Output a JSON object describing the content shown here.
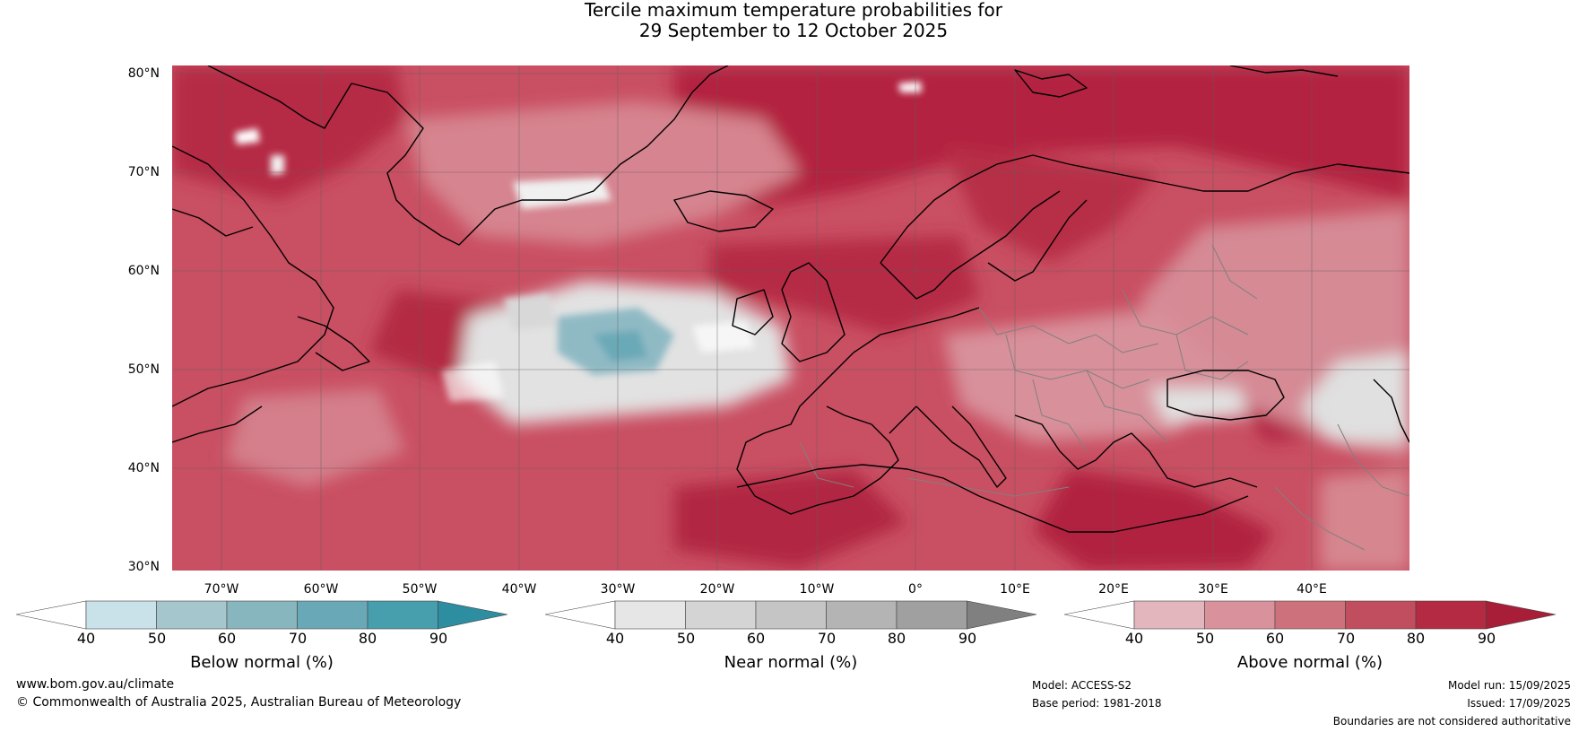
{
  "header": {
    "title_line1": "Tercile maximum temperature probabilities for",
    "title_line2": "29 September to 12 October 2025"
  },
  "map": {
    "lat_labels": [
      "80°N",
      "70°N",
      "60°N",
      "50°N",
      "40°N",
      "30°N"
    ],
    "lon_labels": [
      "70°W",
      "60°W",
      "50°W",
      "40°W",
      "30°W",
      "20°W",
      "10°W",
      "0°",
      "10°E",
      "20°E",
      "30°E",
      "40°E"
    ],
    "colors": {
      "above_base": "#cf6f7c",
      "above_strong": "#b3253f",
      "above_light": "#dd98a3",
      "near_light": "#e3e3e3",
      "below_light": "#8fbac4",
      "coast": "#000000",
      "border": "#808080"
    }
  },
  "colorbars": [
    {
      "name": "below-normal",
      "title": "Below normal (%)",
      "ticks": [
        "40",
        "50",
        "60",
        "70",
        "80",
        "90"
      ],
      "colors": [
        "#ffffff",
        "#c9e1e8",
        "#a6c6cd",
        "#88b6be",
        "#69a9b7",
        "#479ead",
        "#2d8da1"
      ]
    },
    {
      "name": "near-normal",
      "title": "Near normal (%)",
      "ticks": [
        "40",
        "50",
        "60",
        "70",
        "80",
        "90"
      ],
      "colors": [
        "#ffffff",
        "#e6e6e6",
        "#d4d4d4",
        "#c5c5c5",
        "#b4b4b4",
        "#a0a0a0",
        "#808080"
      ]
    },
    {
      "name": "above-normal",
      "title": "Above normal (%)",
      "ticks": [
        "40",
        "50",
        "60",
        "70",
        "80",
        "90"
      ],
      "colors": [
        "#ffffff",
        "#e3b5bc",
        "#d9929c",
        "#cd727d",
        "#c14e5e",
        "#b32a42",
        "#a81e38"
      ]
    }
  ],
  "footer": {
    "website": "www.bom.gov.au/climate",
    "copyright": "© Commonwealth of Australia 2025, Australian Bureau of Meteorology",
    "model": "Model: ACCESS-S2",
    "base_period": "Base period: 1981-2018",
    "model_run": "Model run: 15/09/2025",
    "issued": "Issued: 17/09/2025",
    "disclaimer": "Boundaries are not considered authoritative"
  }
}
